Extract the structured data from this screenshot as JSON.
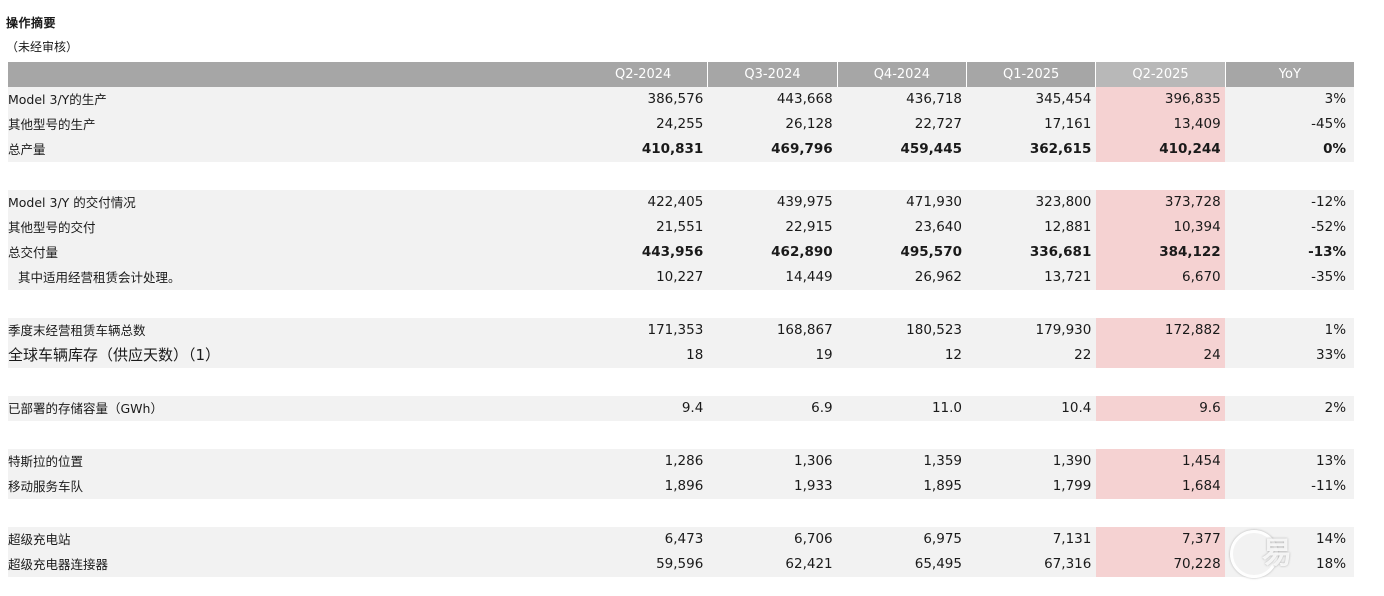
{
  "title": "操作摘要",
  "subtitle": "（未经审核）",
  "columns": [
    "Q2-2024",
    "Q3-2024",
    "Q4-2024",
    "Q1-2025",
    "Q2-2025",
    "YoY"
  ],
  "groups": [
    {
      "rows": [
        {
          "label": "Model 3/Y的生产",
          "values": [
            "386,576",
            "443,668",
            "436,718",
            "345,454",
            "396,835",
            "3%"
          ],
          "bold": false
        },
        {
          "label": "其他型号的生产",
          "values": [
            "24,255",
            "26,128",
            "22,727",
            "17,161",
            "13,409",
            "-45%"
          ],
          "bold": false
        },
        {
          "label": "总产量",
          "values": [
            "410,831",
            "469,796",
            "459,445",
            "362,615",
            "410,244",
            "0%"
          ],
          "bold": true
        }
      ]
    },
    {
      "rows": [
        {
          "label": "Model 3/Y 的交付情况",
          "values": [
            "422,405",
            "439,975",
            "471,930",
            "323,800",
            "373,728",
            "-12%"
          ],
          "bold": false
        },
        {
          "label": "其他型号的交付",
          "values": [
            "21,551",
            "22,915",
            "23,640",
            "12,881",
            "10,394",
            "-52%"
          ],
          "bold": false
        },
        {
          "label": "总交付量",
          "values": [
            "443,956",
            "462,890",
            "495,570",
            "336,681",
            "384,122",
            "-13%"
          ],
          "bold": true
        },
        {
          "label": "其中适用经营租赁会计处理。",
          "values": [
            "10,227",
            "14,449",
            "26,962",
            "13,721",
            "6,670",
            "-35%"
          ],
          "bold": false,
          "indent": true
        }
      ]
    },
    {
      "rows": [
        {
          "label": "季度末经营租赁车辆总数",
          "values": [
            "171,353",
            "168,867",
            "180,523",
            "179,930",
            "172,882",
            "1%"
          ],
          "bold": false
        },
        {
          "label": "全球车辆库存（供应天数）（1）",
          "values": [
            "18",
            "19",
            "12",
            "22",
            "24",
            "33%"
          ],
          "bold": false,
          "big": true
        }
      ]
    },
    {
      "rows": [
        {
          "label": "已部署的存储容量（GWh）",
          "values": [
            "9.4",
            "6.9",
            "11.0",
            "10.4",
            "9.6",
            "2%"
          ],
          "bold": false
        }
      ]
    },
    {
      "rows": [
        {
          "label": "特斯拉的位置",
          "values": [
            "1,286",
            "1,306",
            "1,359",
            "1,390",
            "1,454",
            "13%"
          ],
          "bold": false
        },
        {
          "label": "移动服务车队",
          "values": [
            "1,896",
            "1,933",
            "1,895",
            "1,799",
            "1,684",
            "-11%"
          ],
          "bold": false
        }
      ]
    },
    {
      "rows": [
        {
          "label": "超级充电站",
          "values": [
            "6,473",
            "6,706",
            "6,975",
            "7,131",
            "7,377",
            "14%"
          ],
          "bold": false
        },
        {
          "label": "超级充电器连接器",
          "values": [
            "59,596",
            "62,421",
            "65,495",
            "67,316",
            "70,228",
            "18%"
          ],
          "bold": false
        }
      ]
    }
  ],
  "colors": {
    "header_bg": "#a6a6a6",
    "highlight_col": "#f5d2d2",
    "row_bg": "#f2f2f2"
  }
}
